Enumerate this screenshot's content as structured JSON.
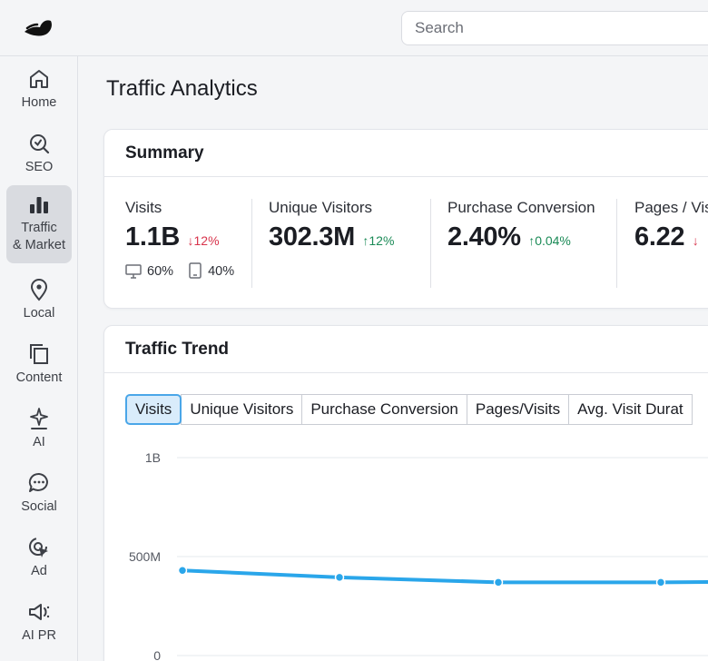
{
  "header": {
    "search_placeholder": "Search"
  },
  "sidebar": {
    "items": [
      {
        "label": "Home",
        "icon": "home-icon"
      },
      {
        "label": "SEO",
        "icon": "seo-icon"
      },
      {
        "label": "Traffic\n& Market",
        "line1": "Traffic",
        "line2": "& Market",
        "icon": "bar-chart-icon",
        "active": true
      },
      {
        "label": "Local",
        "icon": "map-pin-icon"
      },
      {
        "label": "Content",
        "icon": "content-icon"
      },
      {
        "label": "AI",
        "icon": "ai-icon"
      },
      {
        "label": "Social",
        "icon": "chat-bubble-icon"
      },
      {
        "label": "Ad",
        "icon": "ad-cursor-icon"
      },
      {
        "label": "AI PR",
        "icon": "megaphone-icon"
      }
    ]
  },
  "page": {
    "title": "Traffic Analytics"
  },
  "summary": {
    "title": "Summary",
    "metrics": [
      {
        "label": "Visits",
        "value": "1.1B",
        "delta": "12%",
        "direction": "down"
      },
      {
        "label": "Unique Visitors",
        "value": "302.3M",
        "delta": "12%",
        "direction": "up"
      },
      {
        "label": "Purchase Conversion",
        "value": "2.40%",
        "delta": "0.04%",
        "direction": "up"
      },
      {
        "label": "Pages / Vis",
        "value": "6.22",
        "delta": "",
        "direction": "down"
      }
    ],
    "devices": {
      "desktop": "60%",
      "mobile": "40%"
    }
  },
  "trend": {
    "title": "Traffic Trend",
    "tabs": [
      "Visits",
      "Unique Visitors",
      "Purchase Conversion",
      "Pages/Visits",
      "Avg. Visit Durat"
    ],
    "active_tab": "Visits"
  },
  "colors": {
    "accent": "#2aa6ea",
    "down": "#d8344c",
    "up": "#1a8a56",
    "active_tab_bg": "#d9ecfb"
  },
  "chart_data": {
    "type": "line",
    "y_ticks": [
      "1B",
      "500M",
      "0"
    ],
    "ylim": [
      0,
      1000000000
    ],
    "series": [
      {
        "values": [
          430000000,
          395000000,
          370000000,
          370000000,
          375000000
        ]
      }
    ]
  }
}
